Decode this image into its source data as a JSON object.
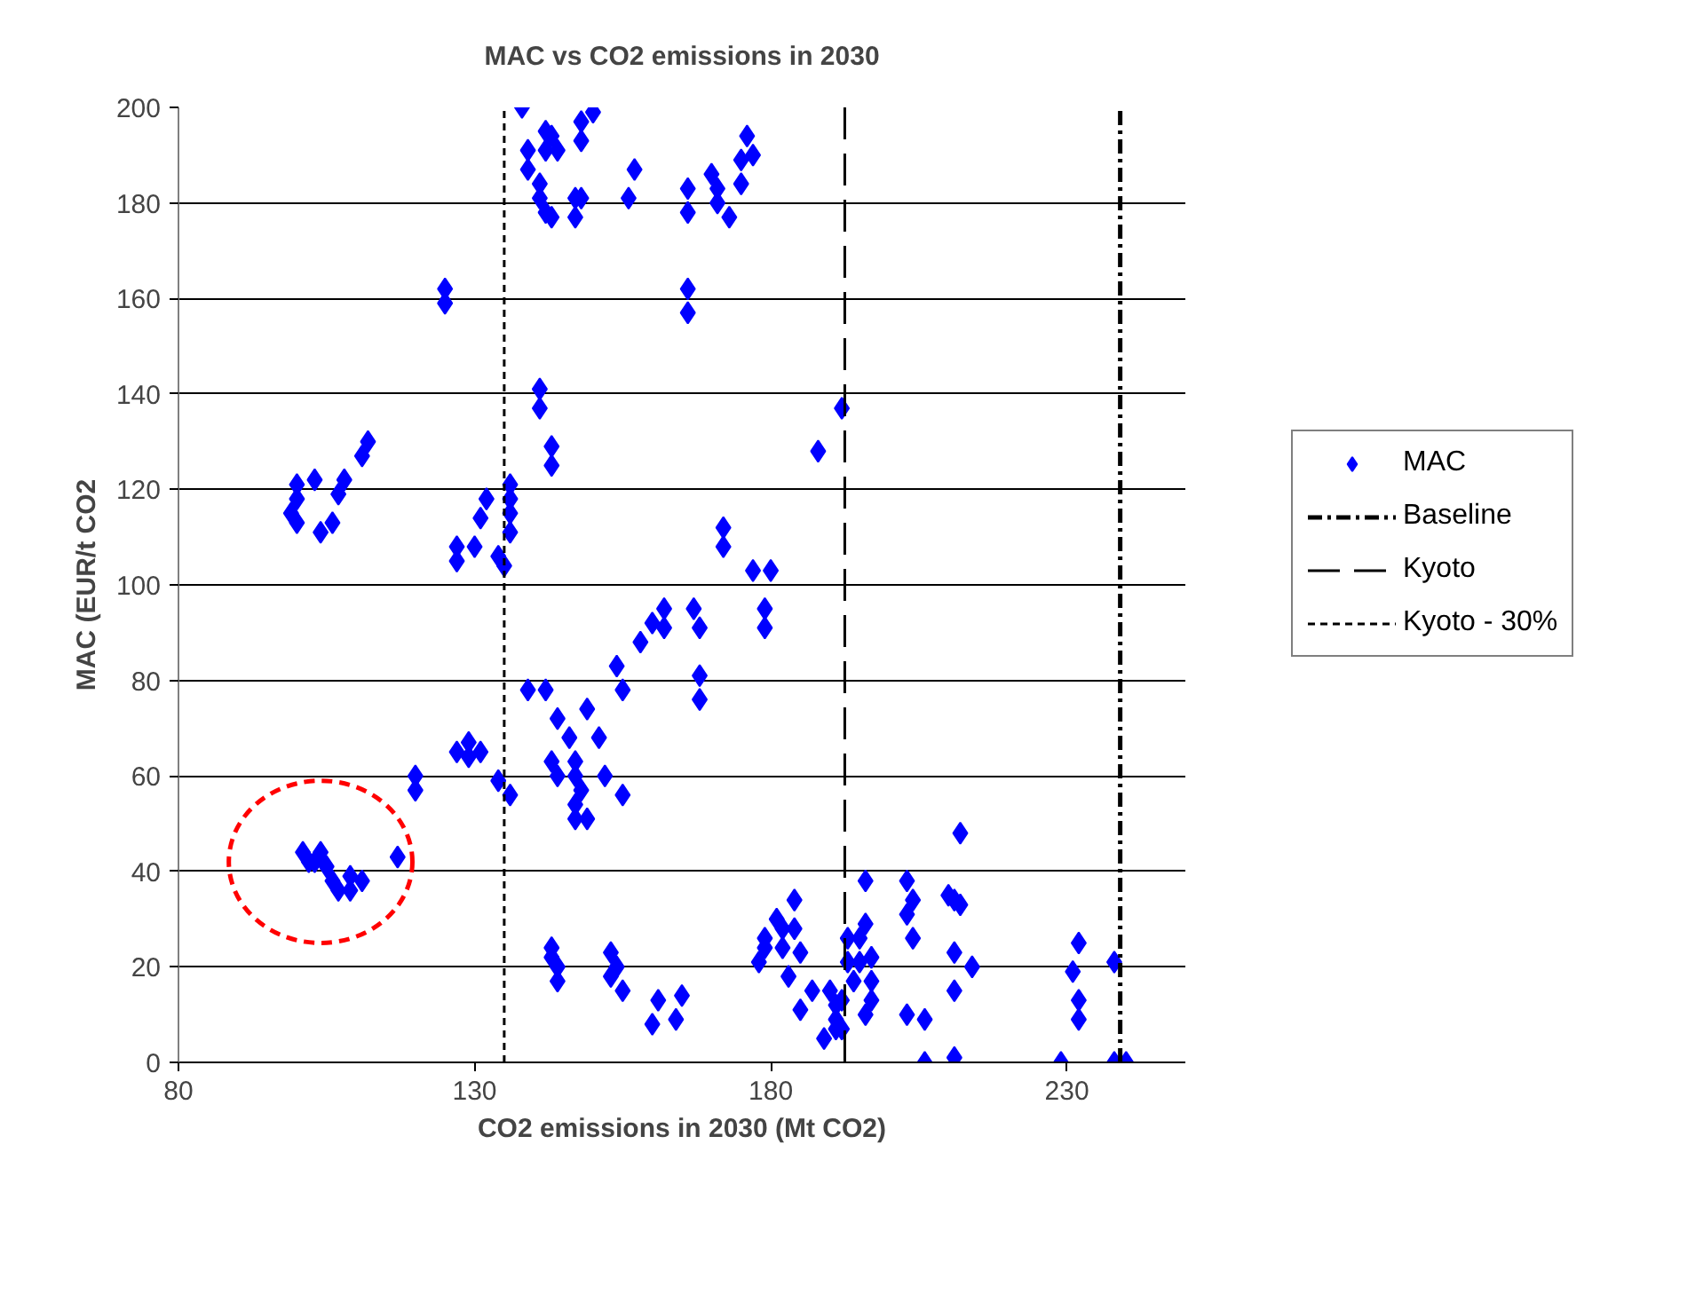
{
  "chart_data": {
    "type": "scatter",
    "title": "MAC vs CO2 emissions in 2030",
    "xlabel": "CO2 emissions in 2030 (Mt CO2)",
    "ylabel": "MAC (EUR/t CO2",
    "xlim": [
      80,
      250
    ],
    "xticks": [
      80,
      130,
      180,
      230
    ],
    "ylim": [
      0,
      200
    ],
    "yticks": [
      0,
      20,
      40,
      60,
      80,
      100,
      120,
      140,
      160,
      180,
      200
    ],
    "grid": "y",
    "legend": "right",
    "marker": "diamond",
    "series": [
      {
        "name": "MAC",
        "color": "#0000ff",
        "x": [
          125,
          125,
          112,
          111,
          100,
          103,
          108,
          100,
          99,
          100,
          104,
          106,
          107,
          132,
          131,
          127,
          127,
          130,
          134,
          135,
          136,
          136,
          136,
          136,
          138,
          150,
          148,
          142,
          143,
          139,
          142,
          144,
          148,
          139,
          141,
          141,
          142,
          143,
          147,
          148,
          147,
          157,
          156,
          166,
          166,
          170,
          171,
          171,
          173,
          176,
          177,
          175,
          175,
          166,
          166,
          141,
          141,
          143,
          143,
          192,
          188,
          172,
          172,
          177,
          180,
          162,
          162,
          160,
          167,
          168,
          179,
          179,
          158,
          154,
          155,
          168,
          168,
          139,
          142,
          144,
          149,
          146,
          151,
          143,
          147,
          144,
          147,
          148,
          147,
          149,
          147,
          152,
          155,
          136,
          129,
          131,
          127,
          129,
          134,
          120,
          120,
          117,
          101,
          104,
          103,
          105,
          106,
          107,
          109,
          111,
          109,
          102,
          143,
          143,
          144,
          144,
          153,
          154,
          153,
          155,
          161,
          165,
          160,
          164,
          184,
          181,
          179,
          182,
          184,
          179,
          182,
          185,
          178,
          183,
          185,
          187,
          190,
          191,
          191,
          189,
          191,
          193,
          193,
          212,
          196,
          203,
          204,
          203,
          204,
          210,
          211,
          212,
          196,
          195,
          211,
          214,
          195,
          197,
          194,
          197,
          197,
          196,
          192,
          192,
          211,
          203,
          206,
          206,
          211,
          229,
          232,
          231,
          232,
          232,
          238,
          238,
          240
        ],
        "values": [
          162,
          159,
          130,
          127,
          121,
          122,
          122,
          118,
          115,
          113,
          111,
          113,
          119,
          118,
          114,
          108,
          105,
          108,
          106,
          104,
          121,
          118,
          115,
          111,
          200,
          199,
          197,
          195,
          194,
          191,
          191,
          191,
          193,
          187,
          184,
          181,
          178,
          177,
          181,
          181,
          177,
          187,
          181,
          183,
          178,
          186,
          183,
          180,
          177,
          194,
          190,
          189,
          184,
          162,
          157,
          141,
          137,
          129,
          125,
          137,
          128,
          112,
          108,
          103,
          103,
          95,
          91,
          92,
          95,
          91,
          95,
          91,
          88,
          83,
          78,
          81,
          76,
          78,
          78,
          72,
          74,
          68,
          68,
          63,
          63,
          60,
          60,
          57,
          54,
          51,
          51,
          60,
          56,
          56,
          67,
          65,
          65,
          64,
          59,
          60,
          57,
          43,
          44,
          44,
          42,
          41,
          38,
          36,
          36,
          38,
          39,
          42,
          24,
          22,
          20,
          17,
          23,
          20,
          18,
          15,
          13,
          14,
          8,
          9,
          34,
          30,
          26,
          28,
          28,
          24,
          24,
          23,
          21,
          18,
          11,
          15,
          15,
          12,
          9,
          5,
          7,
          26,
          21,
          48,
          38,
          38,
          34,
          31,
          26,
          35,
          34,
          33,
          29,
          26,
          23,
          20,
          21,
          22,
          17,
          17,
          13,
          10,
          13,
          7,
          15,
          10,
          9,
          0,
          1,
          0,
          25,
          19,
          13,
          9,
          21,
          0,
          0
        ]
      }
    ],
    "ref_lines": [
      {
        "axis": "x",
        "value": 239,
        "label": "Baseline",
        "color": "#000000",
        "line_style": "dashdot"
      },
      {
        "axis": "x",
        "value": 192.5,
        "label": "Kyoto",
        "color": "#000000",
        "line_style": "longdash"
      },
      {
        "axis": "x",
        "value": 135,
        "label": "Kyoto - 30%",
        "color": "#000000",
        "line_style": "dashed"
      }
    ]
  }
}
